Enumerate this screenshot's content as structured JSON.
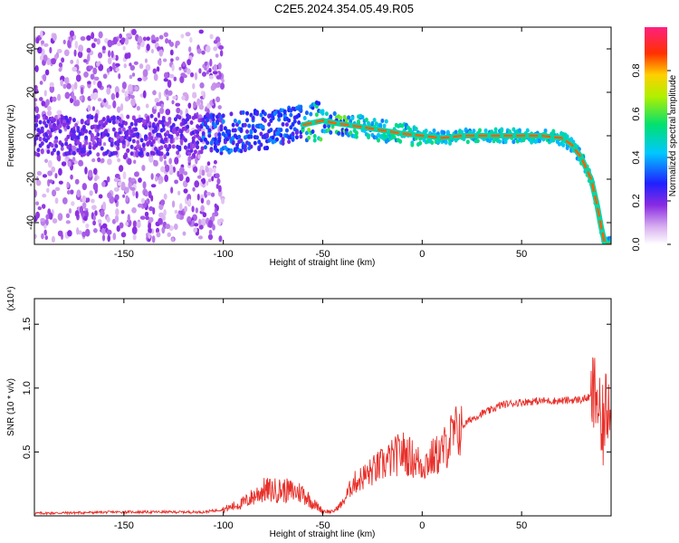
{
  "title": "C2E5.2024.354.05.49.R05",
  "chart_data": [
    {
      "type": "heatmap",
      "xlabel": "Height of straight line (km)",
      "ylabel": "Frequency (Hz)",
      "xlim": [
        -195,
        95
      ],
      "ylim": [
        -50,
        50
      ],
      "x_ticks": [
        "-150",
        "-100",
        "-50",
        "0",
        "50"
      ],
      "x_tick_values": [
        -150,
        -100,
        -50,
        0,
        50
      ],
      "y_ticks": [
        "40",
        "20",
        "0",
        "-20",
        "-40"
      ],
      "y_tick_values": [
        40,
        20,
        0,
        -20,
        -40
      ],
      "colorbar": {
        "label": "Normalized spectral amplitude",
        "range": [
          0,
          1
        ],
        "ticks": [
          "0.0",
          "0.2",
          "0.4",
          "0.6",
          "0.8"
        ],
        "tick_values": [
          0.0,
          0.2,
          0.4,
          0.6,
          0.8
        ]
      },
      "ridge": {
        "x": [
          -195,
          -150,
          -100,
          -80,
          -60,
          -50,
          -45,
          -30,
          -10,
          0,
          10,
          20,
          25,
          40,
          60,
          70,
          75,
          80,
          85,
          88,
          90,
          92
        ],
        "y": [
          0,
          0,
          1,
          3,
          5,
          7,
          6,
          4,
          1,
          0,
          -1,
          0,
          0,
          0,
          0,
          -1,
          -4,
          -10,
          -20,
          -32,
          -42,
          -50
        ]
      }
    },
    {
      "type": "line",
      "xlabel": "Height of straight line (km)",
      "ylabel": "SNR (10 * v/v)",
      "y_multiplier": "(x10⁴)",
      "xlim": [
        -195,
        95
      ],
      "ylim": [
        0,
        1.7
      ],
      "x_ticks": [
        "-150",
        "-100",
        "-50",
        "0",
        "50"
      ],
      "x_tick_values": [
        -150,
        -100,
        -50,
        0,
        50
      ],
      "y_ticks": [
        "1.5",
        "1.0",
        "0.5"
      ],
      "y_tick_values": [
        1.5,
        1.0,
        0.5
      ],
      "series": [
        {
          "color": "#e8302a",
          "x": [
            -195,
            -150,
            -110,
            -100,
            -90,
            -80,
            -70,
            -60,
            -55,
            -50,
            -45,
            -40,
            -35,
            -30,
            -25,
            -20,
            -15,
            -10,
            -5,
            0,
            5,
            10,
            15,
            20,
            25,
            30,
            35,
            40,
            50,
            60,
            70,
            80,
            85,
            88,
            90,
            92,
            95
          ],
          "y": [
            0.02,
            0.03,
            0.03,
            0.05,
            0.1,
            0.2,
            0.2,
            0.18,
            0.1,
            0.04,
            0.03,
            0.1,
            0.25,
            0.3,
            0.35,
            0.4,
            0.45,
            0.5,
            0.45,
            0.4,
            0.45,
            0.5,
            0.62,
            0.7,
            0.76,
            0.8,
            0.83,
            0.87,
            0.89,
            0.9,
            0.9,
            0.91,
            0.93,
            0.95,
            0.6,
            0.8,
            1.0
          ]
        }
      ]
    }
  ]
}
